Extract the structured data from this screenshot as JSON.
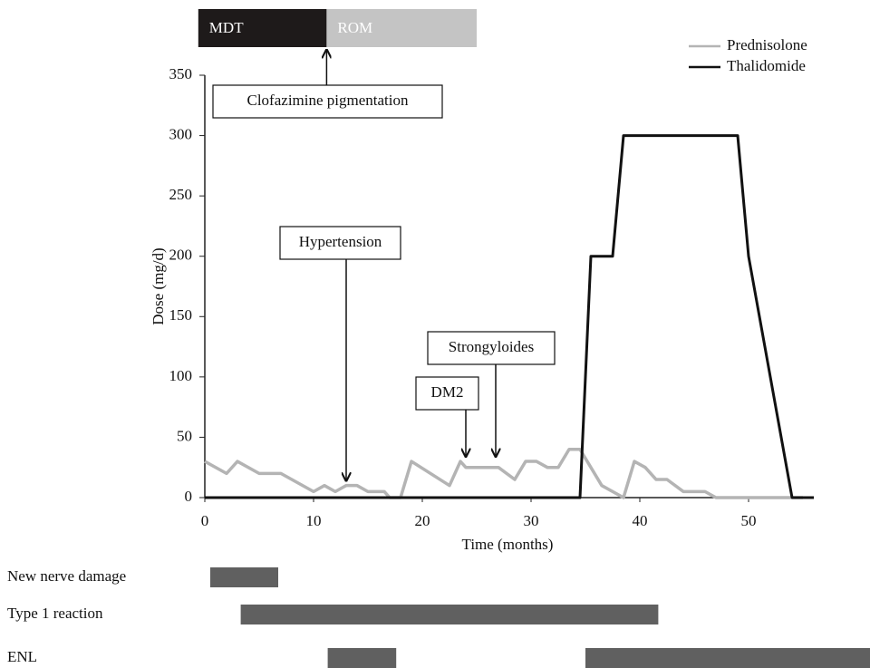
{
  "chart_data": {
    "type": "line",
    "xlabel": "Time (months)",
    "ylabel": "Dose (mg/d)",
    "xlim": [
      0,
      56
    ],
    "ylim": [
      0,
      350
    ],
    "xticks": [
      0,
      10,
      20,
      30,
      40,
      50
    ],
    "yticks": [
      0,
      50,
      100,
      150,
      200,
      250,
      300,
      350
    ],
    "legend": "top right",
    "series": [
      {
        "name": "Prednisolone",
        "color": "#b4b4b4",
        "x": [
          0,
          2,
          3,
          5,
          7,
          10,
          11,
          12,
          13,
          14,
          15,
          16.5,
          17,
          18,
          19,
          22.5,
          23.5,
          24,
          27,
          28.5,
          29.5,
          30.5,
          31.5,
          32.5,
          33.5,
          34.5,
          36.5,
          38.5,
          39.5,
          40.5,
          41.5,
          42.5,
          44,
          46,
          47,
          55
        ],
        "values": [
          30,
          20,
          30,
          20,
          20,
          5,
          10,
          5,
          10,
          10,
          5,
          5,
          0,
          0,
          30,
          10,
          30,
          25,
          25,
          15,
          30,
          30,
          25,
          25,
          40,
          40,
          10,
          0,
          30,
          25,
          15,
          15,
          5,
          5,
          0,
          0
        ]
      },
      {
        "name": "Thalidomide",
        "color": "#111111",
        "x": [
          0,
          34.5,
          35.5,
          37.5,
          38.5,
          49,
          50,
          54,
          56
        ],
        "values": [
          0,
          0,
          200,
          200,
          300,
          300,
          200,
          0,
          0
        ]
      }
    ],
    "periods": [
      {
        "label": "MDT",
        "start": -0.6,
        "end": 11.2,
        "color": "#1e1a1a"
      },
      {
        "label": "ROM",
        "start": 11.2,
        "end": 25,
        "color": "#c4c4c4"
      }
    ],
    "annotations": [
      {
        "text": "Clofazimine pigmentation",
        "x": 11.2
      },
      {
        "text": "Hypertension",
        "x": 13,
        "y": 5
      },
      {
        "text": "DM2",
        "x": 24,
        "y": 25
      },
      {
        "text": "Strongyloides",
        "x": 26.75,
        "y": 25
      }
    ],
    "events": [
      {
        "label": "New nerve damage",
        "spans": [
          [
            0.5,
            6.75
          ]
        ]
      },
      {
        "label": "Type 1 reaction",
        "spans": [
          [
            3.3,
            41.7
          ]
        ]
      },
      {
        "label": "ENL",
        "spans": [
          [
            11.3,
            17.6
          ],
          [
            35,
            61.2
          ]
        ]
      }
    ],
    "event_color": "#606060"
  }
}
